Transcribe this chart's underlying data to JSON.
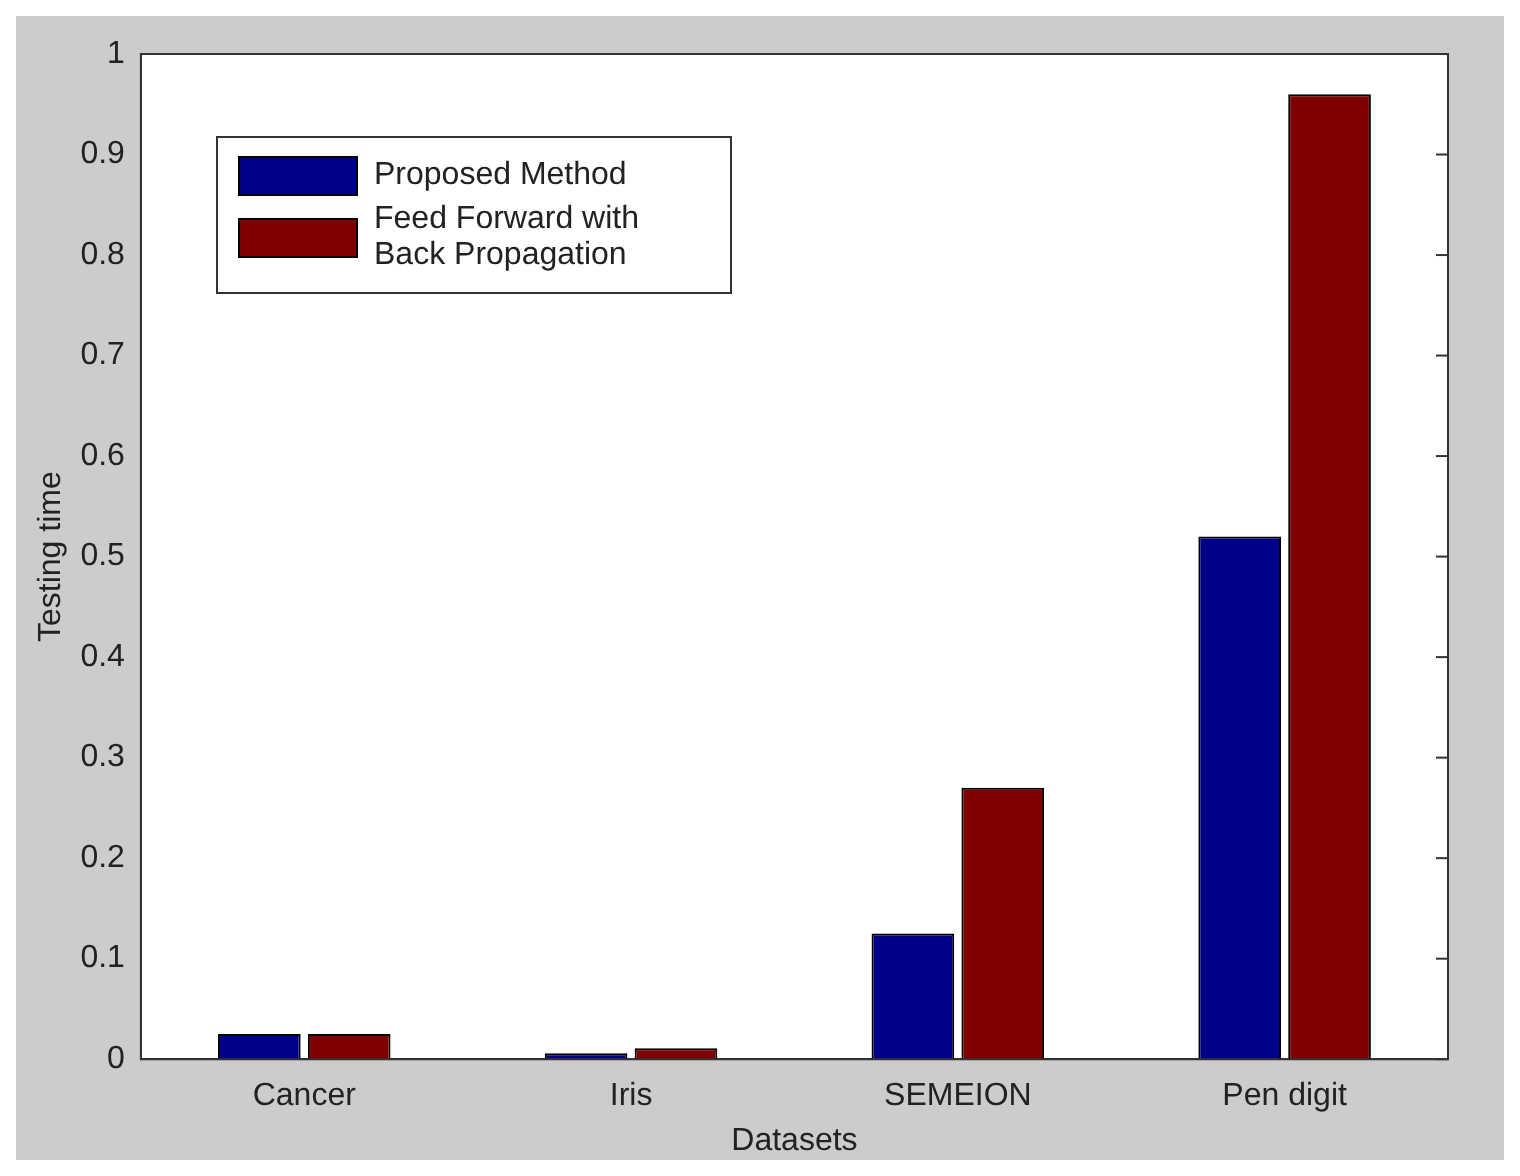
{
  "chart_data": {
    "type": "bar",
    "xlabel": "Datasets",
    "ylabel": "Testing time",
    "categories": [
      "Cancer",
      "Iris",
      "SEMEION",
      "Pen digit"
    ],
    "series": [
      {
        "name": "Proposed Method",
        "color": "#00008b",
        "values": [
          0.025,
          0.006,
          0.125,
          0.52
        ]
      },
      {
        "name": "Feed Forward with Back Propagation",
        "color": "#800000",
        "values": [
          0.025,
          0.011,
          0.27,
          0.96
        ]
      }
    ],
    "ylim": [
      0,
      1
    ],
    "yticks": [
      0,
      0.1,
      0.2,
      0.3,
      0.4,
      0.5,
      0.6,
      0.7,
      0.8,
      0.9,
      1
    ],
    "grid": false,
    "legend": "top left"
  }
}
